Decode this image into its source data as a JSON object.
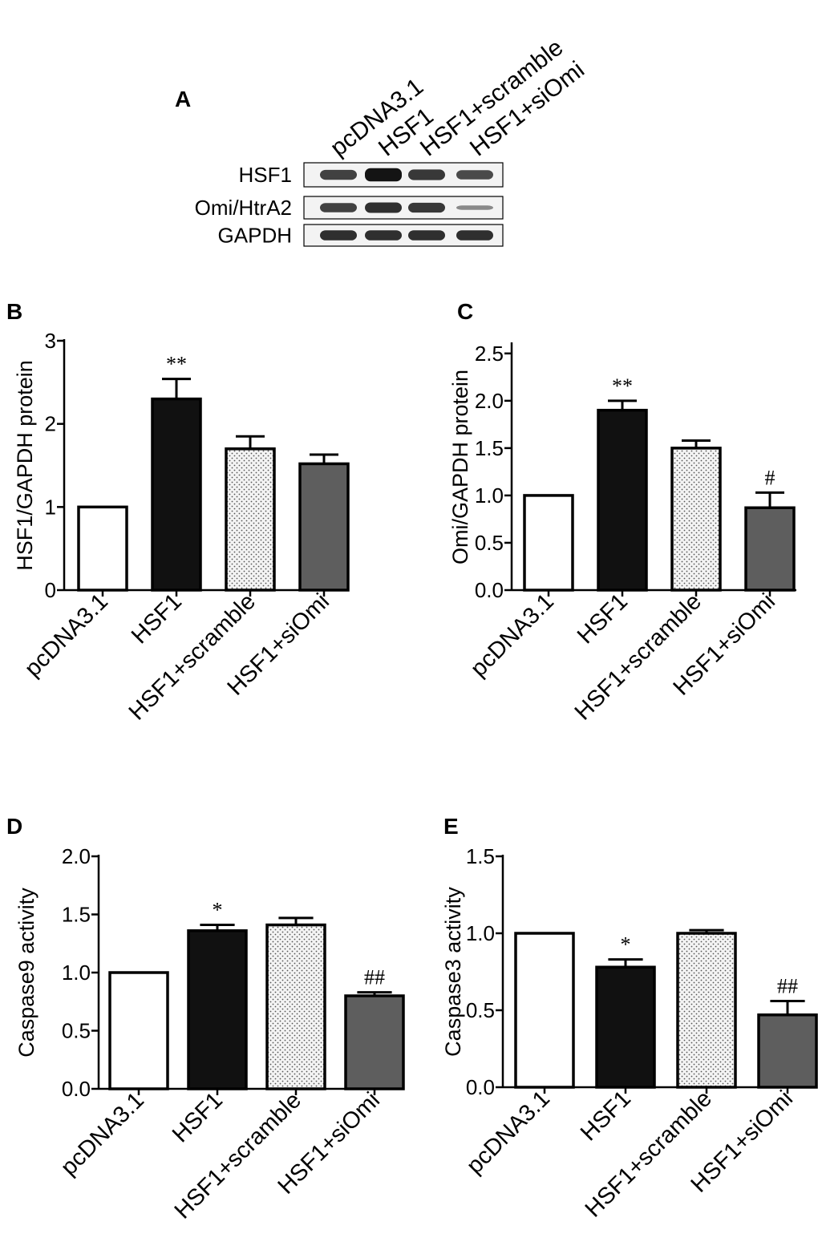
{
  "figure": {
    "panel_a": {
      "letter": "A",
      "lanes": [
        "pcDNA3.1",
        "HSF1",
        "HSF1+scramble",
        "HSF1+siOmi"
      ],
      "rows": [
        {
          "label": "HSF1",
          "intensity": [
            0.75,
            1.0,
            0.8,
            0.7
          ]
        },
        {
          "label": "Omi/HtrA2",
          "intensity": [
            0.75,
            0.85,
            0.8,
            0.35
          ]
        },
        {
          "label": "GAPDH",
          "intensity": [
            0.85,
            0.85,
            0.85,
            0.85
          ]
        }
      ]
    }
  },
  "colors": {
    "pcDNA3.1": "#ffffff",
    "HSF1": "#111111",
    "HSF1+scramble": "#f2f2f2",
    "HSF1+siOmi": "#5e5e5e",
    "outline": "#000000"
  },
  "chart_data": [
    {
      "panel": "B",
      "type": "bar",
      "categories": [
        "pcDNA3.1",
        "HSF1",
        "HSF1+scramble",
        "HSF1+siOmi"
      ],
      "values": [
        1.0,
        2.3,
        1.7,
        1.52
      ],
      "errors": [
        0,
        0.24,
        0.15,
        0.11
      ],
      "annotations": [
        "",
        "**",
        "",
        ""
      ],
      "ylabel": "HSF1/GAPDH protein",
      "ylim": [
        0,
        3
      ],
      "yticks": [
        0,
        1,
        2,
        3
      ],
      "ytick_labels": [
        "0",
        "1",
        "2",
        "3"
      ]
    },
    {
      "panel": "C",
      "type": "bar",
      "categories": [
        "pcDNA3.1",
        "HSF1",
        "HSF1+scramble",
        "HSF1+siOmi"
      ],
      "values": [
        1.0,
        1.9,
        1.5,
        0.87
      ],
      "errors": [
        0,
        0.1,
        0.08,
        0.16
      ],
      "annotations": [
        "",
        "**",
        "",
        "#"
      ],
      "ylabel": "Omi/GAPDH protein",
      "ylim": [
        0,
        2.6
      ],
      "yticks": [
        0,
        0.5,
        1.0,
        1.5,
        2.0,
        2.5
      ],
      "ytick_labels": [
        "0.0",
        "0.5",
        "1.0",
        "1.5",
        "2.0",
        "2.5"
      ]
    },
    {
      "panel": "D",
      "type": "bar",
      "categories": [
        "pcDNA3.1",
        "HSF1",
        "HSF1+scramble",
        "HSF1+siOmi"
      ],
      "values": [
        1.0,
        1.36,
        1.41,
        0.8
      ],
      "errors": [
        0,
        0.05,
        0.06,
        0.03
      ],
      "annotations": [
        "",
        "*",
        "",
        "##"
      ],
      "ylabel": "Caspase9 activity",
      "ylim": [
        0,
        2.0
      ],
      "yticks": [
        0,
        0.5,
        1.0,
        1.5,
        2.0
      ],
      "ytick_labels": [
        "0.0",
        "0.5",
        "1.0",
        "1.5",
        "2.0"
      ]
    },
    {
      "panel": "E",
      "type": "bar",
      "categories": [
        "pcDNA3.1",
        "HSF1",
        "HSF1+scramble",
        "HSF1+siOmi"
      ],
      "values": [
        1.0,
        0.78,
        1.0,
        0.47
      ],
      "errors": [
        0,
        0.05,
        0.02,
        0.09
      ],
      "annotations": [
        "",
        "*",
        "",
        "##"
      ],
      "ylabel": "Caspase3 activity",
      "ylim": [
        0,
        1.5
      ],
      "yticks": [
        0,
        0.5,
        1.0,
        1.5
      ],
      "ytick_labels": [
        "0.0",
        "0.5",
        "1.0",
        "1.5"
      ]
    }
  ]
}
